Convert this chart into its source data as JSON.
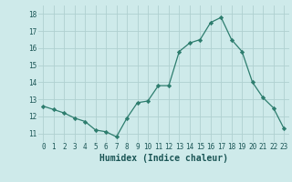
{
  "x": [
    0,
    1,
    2,
    3,
    4,
    5,
    6,
    7,
    8,
    9,
    10,
    11,
    12,
    13,
    14,
    15,
    16,
    17,
    18,
    19,
    20,
    21,
    22,
    23
  ],
  "y": [
    12.6,
    12.4,
    12.2,
    11.9,
    11.7,
    11.2,
    11.1,
    10.8,
    11.9,
    12.8,
    12.9,
    13.8,
    13.8,
    15.8,
    16.3,
    16.5,
    17.5,
    17.8,
    16.5,
    15.8,
    14.0,
    13.1,
    12.5,
    11.3
  ],
  "line_color": "#2d7d6e",
  "marker": "D",
  "marker_size": 2.2,
  "bg_color": "#ceeaea",
  "grid_color": "#b0d0d0",
  "xlabel": "Humidex (Indice chaleur)",
  "ylim": [
    10.5,
    18.5
  ],
  "xlim": [
    -0.5,
    23.5
  ],
  "yticks": [
    11,
    12,
    13,
    14,
    15,
    16,
    17,
    18
  ],
  "xticks": [
    0,
    1,
    2,
    3,
    4,
    5,
    6,
    7,
    8,
    9,
    10,
    11,
    12,
    13,
    14,
    15,
    16,
    17,
    18,
    19,
    20,
    21,
    22,
    23
  ],
  "tick_fontsize": 5.5,
  "xlabel_fontsize": 7
}
